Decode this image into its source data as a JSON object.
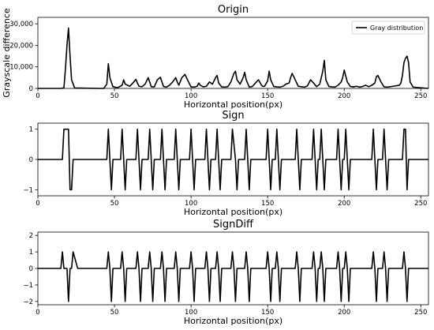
{
  "chart_data": [
    {
      "type": "line",
      "title": "Origin",
      "xlabel": "Horizontal position(px)",
      "ylabel": "Grayscale difference",
      "xlim": [
        0,
        255
      ],
      "ylim": [
        0,
        33000
      ],
      "xticks": [
        0,
        50,
        100,
        150,
        200,
        250
      ],
      "xtick_labels": [
        "0",
        "50",
        "100",
        "150",
        "200",
        "250"
      ],
      "yticks": [
        0,
        10000,
        20000,
        30000
      ],
      "ytick_labels": [
        "0",
        "10,000",
        "20,000",
        "30,000"
      ],
      "legend": {
        "label": "Gray distribution",
        "position": "upper right"
      },
      "series": [
        {
          "name": "Gray distribution",
          "x": [
            0,
            15,
            17,
            18,
            19,
            20,
            21,
            22,
            24,
            40,
            43,
            45,
            46,
            47,
            49,
            52,
            55,
            56,
            57,
            60,
            62,
            64,
            65,
            66,
            68,
            70,
            72,
            73,
            74,
            76,
            78,
            80,
            81,
            82,
            84,
            86,
            88,
            90,
            91,
            92,
            94,
            96,
            98,
            100,
            102,
            104,
            105,
            106,
            108,
            110,
            112,
            114,
            116,
            117,
            118,
            120,
            122,
            124,
            126,
            128,
            129,
            130,
            132,
            134,
            135,
            136,
            138,
            140,
            142,
            144,
            146,
            147,
            148,
            150,
            151,
            152,
            154,
            156,
            158,
            160,
            162,
            164,
            165,
            166,
            168,
            169,
            170,
            172,
            174,
            176,
            178,
            180,
            182,
            184,
            186,
            187,
            188,
            190,
            192,
            194,
            196,
            198,
            199,
            200,
            202,
            204,
            206,
            208,
            210,
            212,
            214,
            216,
            218,
            220,
            221,
            222,
            224,
            226,
            228,
            230,
            232,
            236,
            237,
            238,
            239,
            240,
            241,
            242,
            243,
            245,
            255
          ],
          "y": [
            0,
            0,
            300,
            9000,
            20000,
            28000,
            15000,
            4000,
            200,
            0,
            0,
            2000,
            11500,
            5000,
            800,
            300,
            1500,
            4000,
            2000,
            1000,
            2500,
            4200,
            2500,
            1000,
            800,
            2000,
            5000,
            3000,
            800,
            700,
            4000,
            5200,
            3000,
            900,
            600,
            1500,
            3000,
            5000,
            3000,
            1500,
            5000,
            6500,
            3500,
            700,
            600,
            1000,
            2500,
            1500,
            700,
            1000,
            3000,
            2000,
            5000,
            6000,
            2500,
            700,
            600,
            800,
            3000,
            7000,
            8000,
            4000,
            2000,
            5000,
            7500,
            4000,
            600,
            900,
            2500,
            4000,
            1500,
            900,
            1000,
            3500,
            8000,
            4000,
            900,
            700,
            600,
            1000,
            2000,
            2500,
            5000,
            7000,
            4000,
            2500,
            1000,
            800,
            600,
            1200,
            4000,
            2500,
            800,
            2000,
            8000,
            13000,
            4000,
            900,
            700,
            600,
            1500,
            3000,
            5000,
            8500,
            3000,
            900,
            700,
            1000,
            600,
            900,
            1500,
            800,
            1500,
            2500,
            5500,
            6000,
            3000,
            700,
            600,
            800,
            1000,
            1500,
            2500,
            6000,
            12000,
            14000,
            15000,
            12000,
            3000,
            600,
            0
          ]
        }
      ]
    },
    {
      "type": "line",
      "title": "Sign",
      "xlabel": "Horizontal position(px)",
      "ylabel": "",
      "xlim": [
        0,
        255
      ],
      "ylim": [
        -1.2,
        1.2
      ],
      "xticks": [
        0,
        50,
        100,
        150,
        200,
        250
      ],
      "xtick_labels": [
        "0",
        "50",
        "100",
        "150",
        "200",
        "250"
      ],
      "yticks": [
        -1,
        0,
        1
      ],
      "ytick_labels": [
        "−1",
        "0",
        "1"
      ],
      "series": [
        {
          "x": [
            0,
            16,
            17,
            20,
            21,
            22,
            23,
            26,
            27,
            45,
            46,
            47,
            48,
            49,
            54,
            55,
            56,
            57,
            58,
            64,
            65,
            66,
            67,
            68,
            72,
            73,
            74,
            75,
            76,
            80,
            81,
            82,
            83,
            84,
            89,
            90,
            91,
            92,
            93,
            99,
            100,
            101,
            102,
            103,
            109,
            110,
            111,
            112,
            113,
            116,
            117,
            118,
            119,
            120,
            126,
            127,
            129,
            130,
            131,
            135,
            136,
            137,
            138,
            139,
            149,
            150,
            151,
            152,
            153,
            155,
            156,
            157,
            158,
            159,
            168,
            169,
            170,
            171,
            172,
            179,
            180,
            181,
            182,
            183,
            184,
            185,
            186,
            187,
            188,
            195,
            196,
            197,
            198,
            199,
            200,
            201,
            202,
            203,
            204,
            218,
            219,
            220,
            221,
            222,
            225,
            226,
            227,
            228,
            229,
            238,
            239,
            240,
            241,
            242,
            255
          ],
          "y": [
            0,
            0,
            1,
            1,
            -1,
            -1,
            0,
            0,
            0,
            0,
            1,
            0,
            -1,
            0,
            0,
            1,
            0,
            -1,
            0,
            0,
            1,
            0,
            -1,
            0,
            0,
            1,
            0,
            -1,
            0,
            0,
            1,
            0,
            -1,
            0,
            0,
            1,
            0,
            -1,
            0,
            0,
            1,
            0,
            -1,
            0,
            0,
            1,
            0,
            -1,
            0,
            0,
            1,
            0,
            -1,
            0,
            0,
            1,
            0,
            -1,
            0,
            0,
            1,
            0,
            -1,
            0,
            0,
            1,
            0,
            -1,
            0,
            0,
            1,
            0,
            -1,
            0,
            0,
            1,
            0,
            -1,
            0,
            0,
            1,
            0,
            -1,
            0,
            0,
            1,
            0,
            -1,
            0,
            0,
            1,
            0,
            -1,
            0,
            0,
            1,
            0,
            -1,
            0,
            0,
            1,
            0,
            -1,
            0,
            0,
            1,
            0,
            -1,
            0,
            0,
            1,
            1,
            -1,
            0,
            0
          ]
        }
      ]
    },
    {
      "type": "line",
      "title": "SignDiff",
      "xlabel": "Horizontal position(px)",
      "ylabel": "",
      "xlim": [
        0,
        255
      ],
      "ylim": [
        -2.2,
        2.2
      ],
      "xticks": [
        0,
        50,
        100,
        150,
        200,
        250
      ],
      "xtick_labels": [
        "0",
        "50",
        "100",
        "150",
        "200",
        "250"
      ],
      "yticks": [
        -2,
        -1,
        0,
        1,
        2
      ],
      "ytick_labels": [
        "−2",
        "−1",
        "0",
        "1",
        "2"
      ],
      "series": [
        {
          "x": [
            0,
            15,
            16,
            17,
            19,
            20,
            21,
            22,
            23,
            26,
            45,
            46,
            47,
            48,
            49,
            54,
            55,
            56,
            57,
            58,
            64,
            65,
            66,
            67,
            68,
            72,
            73,
            74,
            75,
            76,
            80,
            81,
            82,
            83,
            84,
            89,
            90,
            91,
            92,
            93,
            99,
            100,
            101,
            102,
            103,
            109,
            110,
            111,
            112,
            113,
            116,
            117,
            118,
            119,
            120,
            126,
            127,
            128,
            129,
            130,
            135,
            136,
            137,
            138,
            139,
            149,
            150,
            151,
            152,
            153,
            155,
            156,
            157,
            158,
            159,
            168,
            169,
            170,
            171,
            172,
            179,
            180,
            181,
            182,
            183,
            184,
            185,
            186,
            187,
            188,
            195,
            196,
            197,
            198,
            199,
            200,
            201,
            202,
            203,
            204,
            218,
            219,
            220,
            221,
            222,
            225,
            226,
            227,
            228,
            229,
            238,
            239,
            240,
            241,
            242,
            255
          ],
          "y": [
            0,
            0,
            1,
            0,
            0,
            -2,
            0,
            0,
            1,
            0,
            0,
            1,
            0,
            -2,
            0,
            0,
            1,
            0,
            -2,
            0,
            0,
            1,
            0,
            -2,
            0,
            0,
            1,
            0,
            -2,
            0,
            0,
            1,
            0,
            -2,
            0,
            0,
            1,
            0,
            -2,
            0,
            0,
            1,
            0,
            -2,
            0,
            0,
            1,
            0,
            -2,
            0,
            0,
            1,
            0,
            -2,
            0,
            0,
            1,
            0,
            -2,
            0,
            0,
            1,
            0,
            -2,
            0,
            0,
            1,
            0,
            -2,
            0,
            0,
            1,
            0,
            -2,
            0,
            0,
            1,
            0,
            -2,
            0,
            0,
            1,
            0,
            -2,
            0,
            0,
            1,
            0,
            -2,
            0,
            0,
            1,
            0,
            -2,
            0,
            0,
            1,
            0,
            -2,
            0,
            0,
            1,
            0,
            -2,
            0,
            0,
            1,
            0,
            -2,
            0,
            0,
            1,
            0,
            -2,
            0,
            0
          ]
        }
      ]
    }
  ]
}
